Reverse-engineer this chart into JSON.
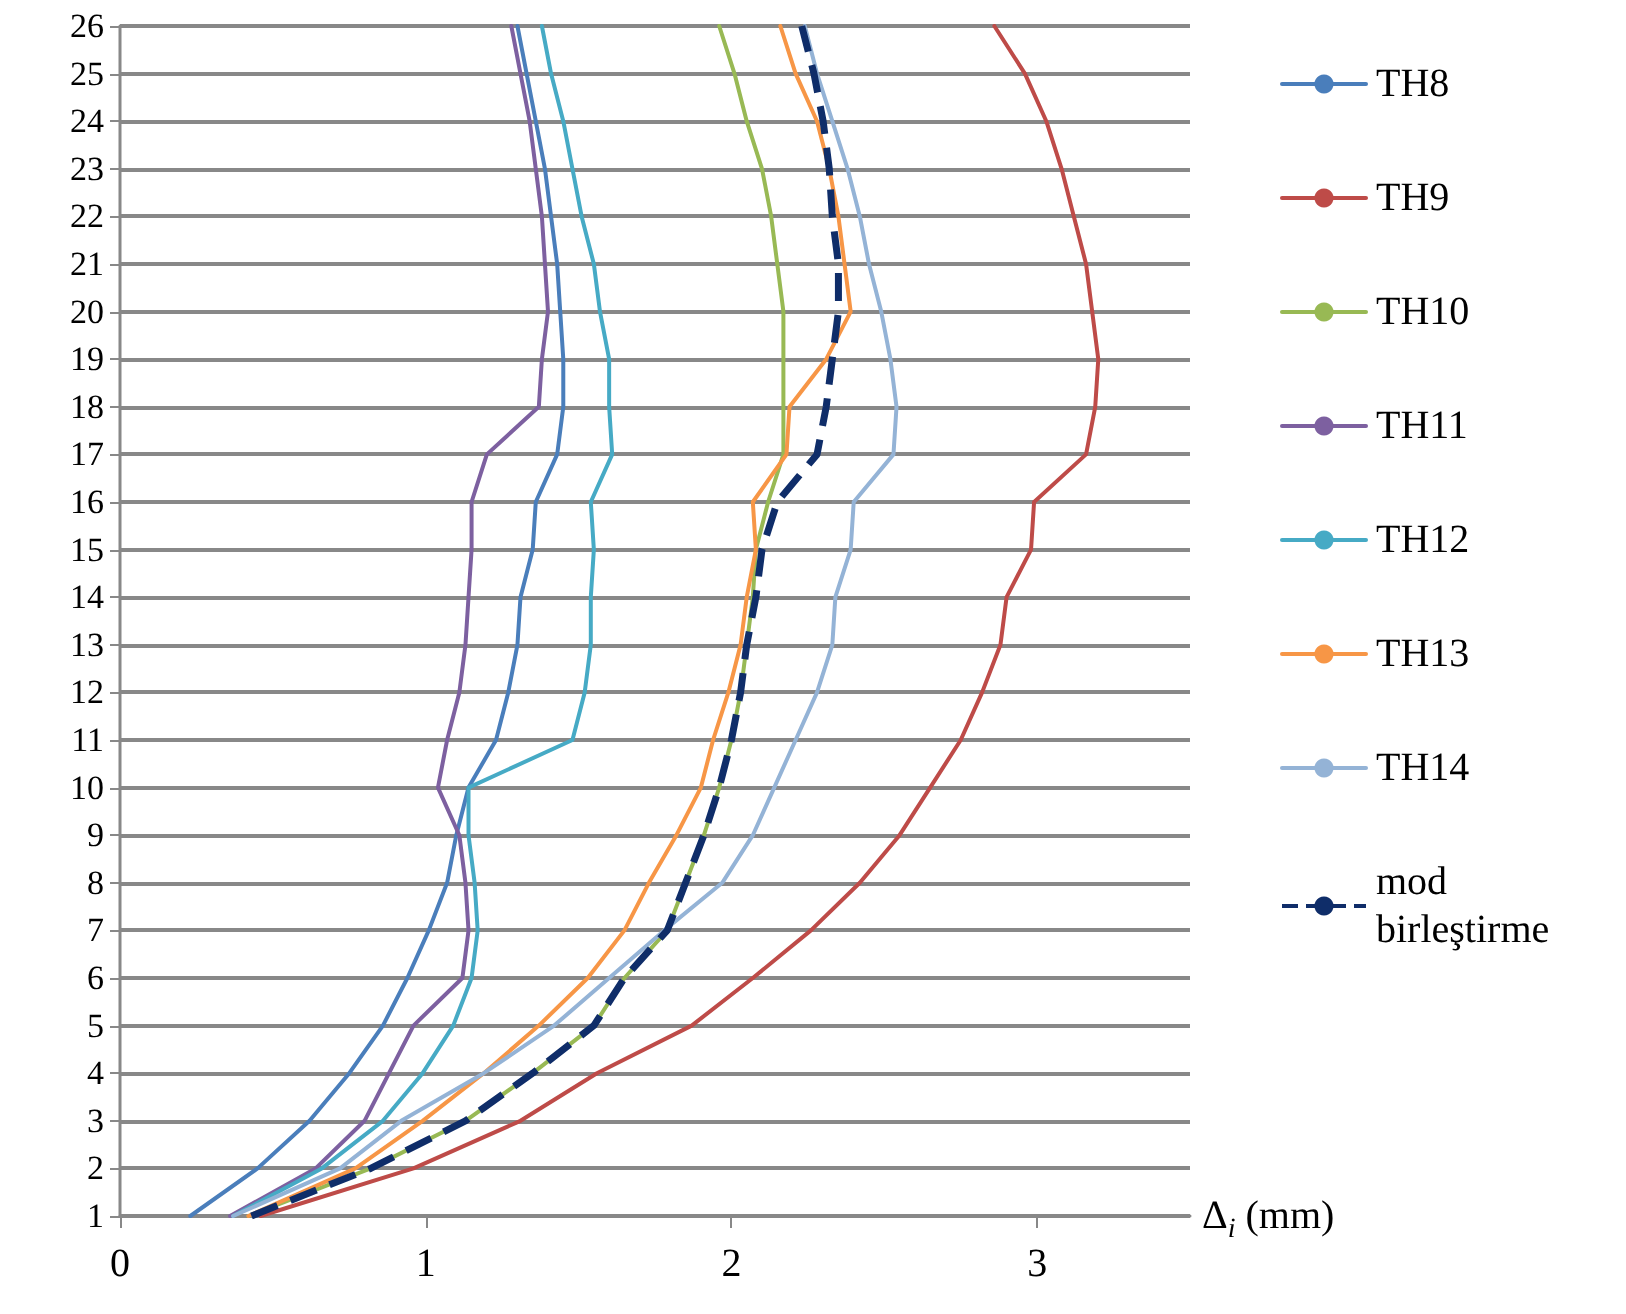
{
  "chart_data": {
    "type": "line",
    "xlabel": "Δ$_{i}$ (mm)",
    "xlim": [
      0,
      3.5
    ],
    "xticks": [
      0,
      1,
      2,
      3
    ],
    "ylim": [
      1,
      26
    ],
    "yticks": [
      1,
      2,
      3,
      4,
      5,
      6,
      7,
      8,
      9,
      10,
      11,
      12,
      13,
      14,
      15,
      16,
      17,
      18,
      19,
      20,
      21,
      22,
      23,
      24,
      25,
      26
    ],
    "grid": "y",
    "legend": "right",
    "marker": "none",
    "series": [
      {
        "name": "TH8",
        "color": "#4a7ebb",
        "line_style": "solid",
        "x": [
          0.23,
          0.45,
          0.62,
          0.75,
          0.86,
          0.94,
          1.01,
          1.07,
          1.1,
          1.14,
          1.23,
          1.27,
          1.3,
          1.31,
          1.35,
          1.36,
          1.43,
          1.45,
          1.45,
          1.44,
          1.43,
          1.41,
          1.39,
          1.36,
          1.33,
          1.3
        ],
        "values": [
          1,
          2,
          3,
          4,
          5,
          6,
          7,
          8,
          9,
          10,
          11,
          12,
          13,
          14,
          15,
          16,
          17,
          18,
          19,
          20,
          21,
          22,
          23,
          24,
          25,
          26
        ]
      },
      {
        "name": "TH9",
        "color": "#be4b48",
        "line_style": "solid",
        "x": [
          0.46,
          0.96,
          1.31,
          1.56,
          1.87,
          2.07,
          2.26,
          2.42,
          2.55,
          2.65,
          2.75,
          2.82,
          2.88,
          2.9,
          2.98,
          2.99,
          3.16,
          3.19,
          3.2,
          3.18,
          3.16,
          3.12,
          3.08,
          3.03,
          2.96,
          2.86
        ],
        "values": [
          1,
          2,
          3,
          4,
          5,
          6,
          7,
          8,
          9,
          10,
          11,
          12,
          13,
          14,
          15,
          16,
          17,
          18,
          19,
          20,
          21,
          22,
          23,
          24,
          25,
          26
        ]
      },
      {
        "name": "TH10",
        "color": "#98b954",
        "line_style": "solid",
        "x": [
          0.42,
          0.82,
          1.13,
          1.35,
          1.55,
          1.65,
          1.79,
          1.85,
          1.91,
          1.96,
          2.0,
          2.03,
          2.05,
          2.07,
          2.08,
          2.12,
          2.17,
          2.17,
          2.17,
          2.17,
          2.15,
          2.13,
          2.1,
          2.05,
          2.01,
          1.96
        ],
        "values": [
          1,
          2,
          3,
          4,
          5,
          6,
          7,
          8,
          9,
          10,
          11,
          12,
          13,
          14,
          15,
          16,
          17,
          18,
          19,
          20,
          21,
          22,
          23,
          24,
          25,
          26
        ]
      },
      {
        "name": "TH11",
        "color": "#7d60a0",
        "line_style": "solid",
        "x": [
          0.36,
          0.64,
          0.8,
          0.88,
          0.96,
          1.12,
          1.14,
          1.13,
          1.11,
          1.04,
          1.07,
          1.11,
          1.13,
          1.14,
          1.15,
          1.15,
          1.2,
          1.37,
          1.38,
          1.4,
          1.39,
          1.38,
          1.36,
          1.34,
          1.31,
          1.28
        ],
        "values": [
          1,
          2,
          3,
          4,
          5,
          6,
          7,
          8,
          9,
          10,
          11,
          12,
          13,
          14,
          15,
          16,
          17,
          18,
          19,
          20,
          21,
          22,
          23,
          24,
          25,
          26
        ]
      },
      {
        "name": "TH12",
        "color": "#46aac5",
        "line_style": "solid",
        "x": [
          0.37,
          0.66,
          0.86,
          0.99,
          1.09,
          1.15,
          1.17,
          1.16,
          1.14,
          1.14,
          1.48,
          1.52,
          1.54,
          1.54,
          1.55,
          1.54,
          1.61,
          1.6,
          1.6,
          1.57,
          1.55,
          1.51,
          1.48,
          1.45,
          1.41,
          1.38
        ],
        "values": [
          1,
          2,
          3,
          4,
          5,
          6,
          7,
          8,
          9,
          10,
          11,
          12,
          13,
          14,
          15,
          16,
          17,
          18,
          19,
          20,
          21,
          22,
          23,
          24,
          25,
          26
        ]
      },
      {
        "name": "TH13",
        "color": "#f79646",
        "line_style": "solid",
        "x": [
          0.42,
          0.77,
          0.99,
          1.19,
          1.37,
          1.53,
          1.65,
          1.73,
          1.82,
          1.9,
          1.94,
          1.99,
          2.03,
          2.05,
          2.08,
          2.07,
          2.18,
          2.19,
          2.31,
          2.39,
          2.37,
          2.35,
          2.32,
          2.28,
          2.21,
          2.16
        ],
        "values": [
          1,
          2,
          3,
          4,
          5,
          6,
          7,
          8,
          9,
          10,
          11,
          12,
          13,
          14,
          15,
          16,
          17,
          18,
          19,
          20,
          21,
          22,
          23,
          24,
          25,
          26
        ]
      },
      {
        "name": "TH14",
        "color": "#94b3d6",
        "line_style": "solid",
        "x": [
          0.37,
          0.72,
          0.92,
          1.19,
          1.42,
          1.6,
          1.78,
          1.97,
          2.07,
          2.14,
          2.21,
          2.28,
          2.33,
          2.34,
          2.39,
          2.4,
          2.53,
          2.54,
          2.52,
          2.49,
          2.45,
          2.42,
          2.38,
          2.33,
          2.28,
          2.24
        ],
        "values": [
          1,
          2,
          3,
          4,
          5,
          6,
          7,
          8,
          9,
          10,
          11,
          12,
          13,
          14,
          15,
          16,
          17,
          18,
          19,
          20,
          21,
          22,
          23,
          24,
          25,
          26
        ]
      },
      {
        "name": "mod birleştirme",
        "color": "#0f2d69",
        "line_style": "dashed",
        "x": [
          0.43,
          0.82,
          1.13,
          1.35,
          1.55,
          1.65,
          1.79,
          1.85,
          1.91,
          1.96,
          2.0,
          2.03,
          2.05,
          2.08,
          2.1,
          2.15,
          2.28,
          2.31,
          2.33,
          2.35,
          2.35,
          2.33,
          2.32,
          2.3,
          2.27,
          2.23
        ],
        "values": [
          1,
          2,
          3,
          4,
          5,
          6,
          7,
          8,
          9,
          10,
          11,
          12,
          13,
          14,
          15,
          16,
          17,
          18,
          19,
          20,
          21,
          22,
          23,
          24,
          25,
          26
        ]
      }
    ]
  }
}
